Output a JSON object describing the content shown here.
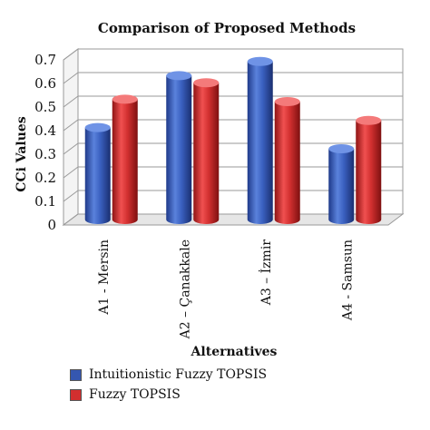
{
  "chart_data": {
    "type": "bar",
    "title": "Comparison of Proposed Methods",
    "xlabel": "Alternatives",
    "ylabel": "CCi Values",
    "categories": [
      "A1 - Mersin",
      "A2 – Çanakkale",
      "A3 – İzmir",
      "A4 - Samsun"
    ],
    "series": [
      {
        "name": "Intuitionistic Fuzzy TOPSIS",
        "color": "#3557b0",
        "values": [
          0.39,
          0.61,
          0.67,
          0.3
        ]
      },
      {
        "name": "Fuzzy TOPSIS",
        "color": "#d22f2f",
        "values": [
          0.51,
          0.58,
          0.5,
          0.42
        ]
      }
    ],
    "ylim": [
      0,
      0.7
    ],
    "yticks": [
      "0",
      "0.1",
      "0.2",
      "0.3",
      "0.4",
      "0.5",
      "0.6",
      "0.7"
    ],
    "grid": true,
    "legend": "bottom-left"
  }
}
